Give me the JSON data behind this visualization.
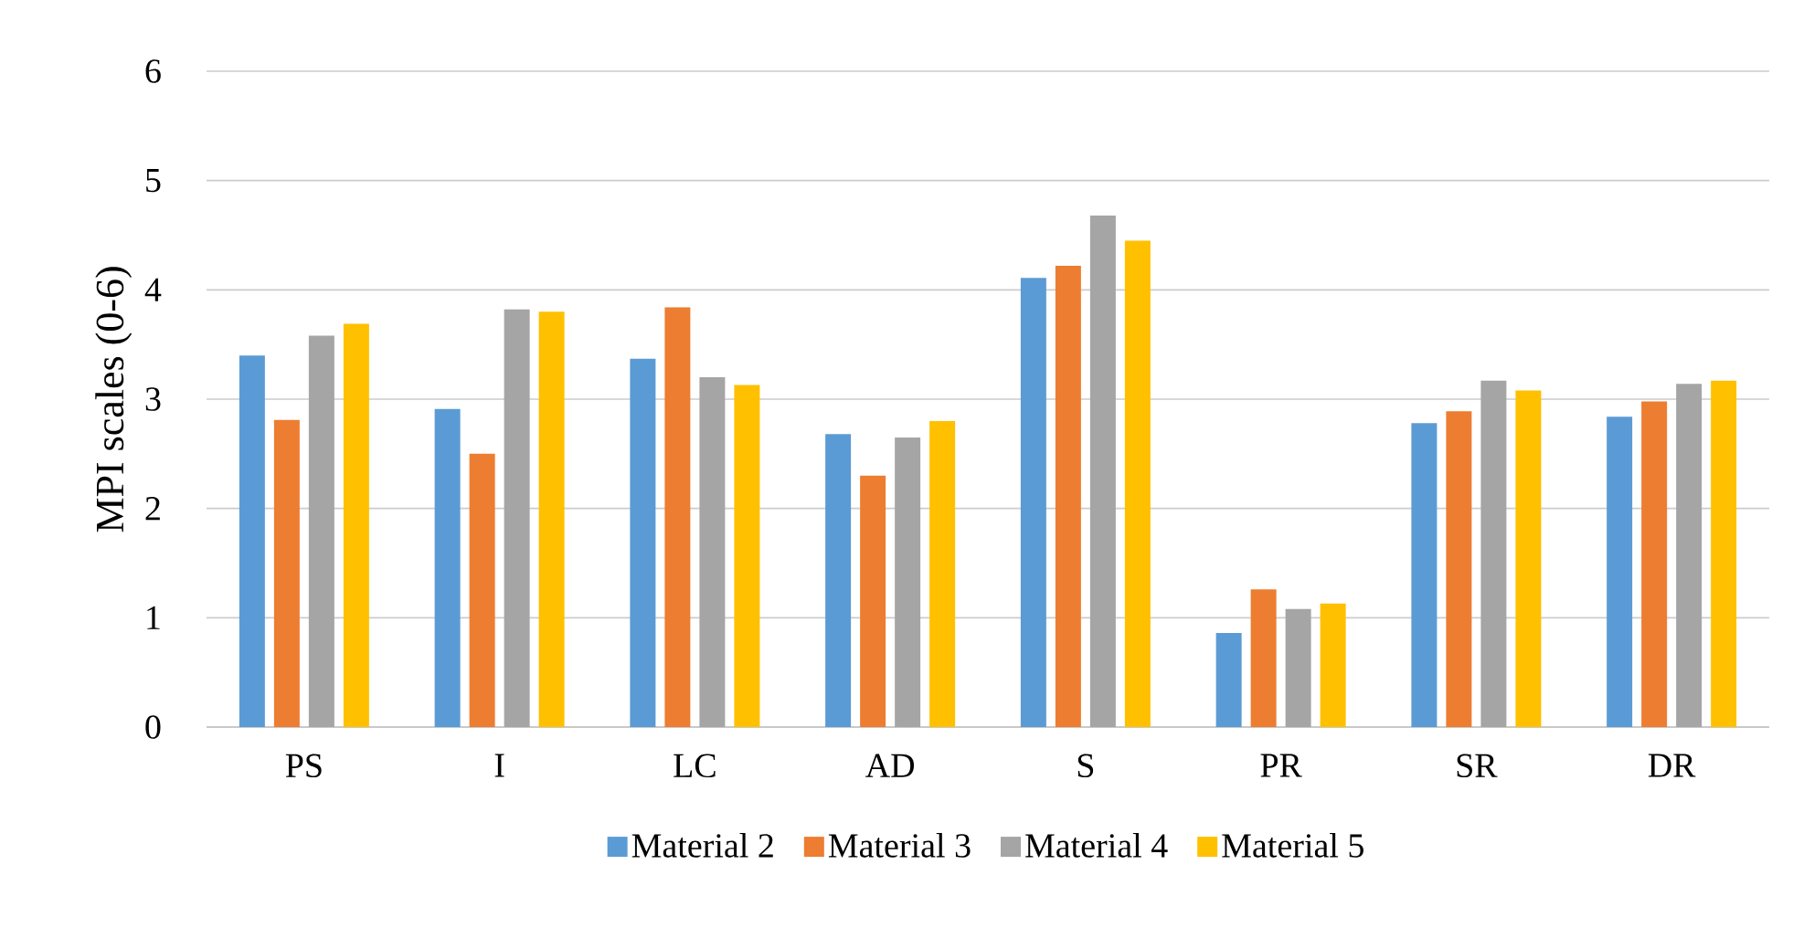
{
  "chart_data": {
    "type": "bar",
    "ylabel": "MPI scales (0-6)",
    "categories": [
      "PS",
      "I",
      "LC",
      "AD",
      "S",
      "PR",
      "SR",
      "DR"
    ],
    "series": [
      {
        "name": "Material 2",
        "color": "#5b9bd5",
        "values": [
          3.4,
          2.91,
          3.37,
          2.68,
          4.11,
          0.86,
          2.78,
          2.84
        ]
      },
      {
        "name": "Material 3",
        "color": "#ed7d31",
        "values": [
          2.81,
          2.5,
          3.84,
          2.3,
          4.22,
          1.26,
          2.89,
          2.98
        ]
      },
      {
        "name": "Material 4",
        "color": "#a5a5a5",
        "values": [
          3.58,
          3.82,
          3.2,
          2.65,
          4.68,
          1.08,
          3.17,
          3.14
        ]
      },
      {
        "name": "Material 5",
        "color": "#ffc000",
        "values": [
          3.69,
          3.8,
          3.13,
          2.8,
          4.45,
          1.13,
          3.08,
          3.17
        ]
      }
    ],
    "ylim": [
      0,
      6
    ],
    "yticks": [
      0,
      1,
      2,
      3,
      4,
      5,
      6
    ],
    "grid": "y",
    "legend": "bottom"
  }
}
